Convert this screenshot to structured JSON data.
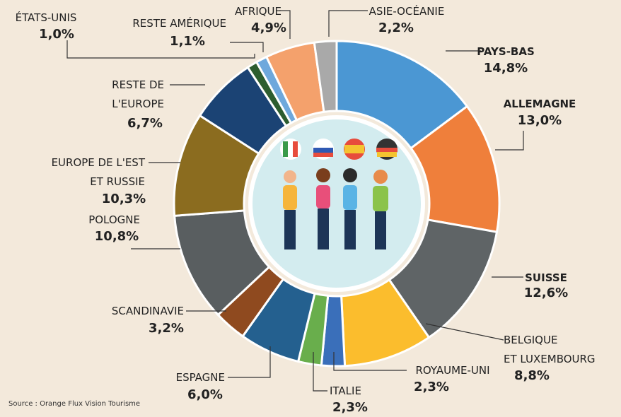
{
  "chart_data": {
    "type": "donut",
    "categories": [
      "PAYS-BAS",
      "ALLEMAGNE",
      "SUISSE",
      "BELGIQUE\nET LUXEMBOURG",
      "ROYAUME-UNI",
      "ITALIE",
      "ESPAGNE",
      "SCANDINAVIE",
      "POLOGNE",
      "EUROPE DE L'EST\nET RUSSIE",
      "RESTE DE\nL'EUROPE",
      "ÉTATS-UNIS",
      "RESTE AMÉRIQUE",
      "AFRIQUE",
      "ASIE-OCÉANIE"
    ],
    "values": [
      14.8,
      13.0,
      12.6,
      8.8,
      2.3,
      2.3,
      6.0,
      3.2,
      10.8,
      10.3,
      6.7,
      1.0,
      1.1,
      4.9,
      2.2
    ],
    "value_labels": [
      "14,8%",
      "13,0%",
      "12,6%",
      "8,8%",
      "2,3%",
      "2,3%",
      "6,0%",
      "3,2%",
      "10,8%",
      "10,3%",
      "6,7%",
      "1,0%",
      "1,1%",
      "4,9%",
      "2,2%"
    ],
    "colors": [
      "#4b97d3",
      "#ef7f3b",
      "#5f6466",
      "#fbbd2d",
      "#3a6fba",
      "#69ae4c",
      "#24608f",
      "#8f4a1f",
      "#595e60",
      "#8b6c1f",
      "#1b4374",
      "#2d5d2f",
      "#6ea8dc",
      "#f4a16c",
      "#a9a9a9"
    ],
    "source": "Source : Orange Flux Vision Tourisme"
  }
}
